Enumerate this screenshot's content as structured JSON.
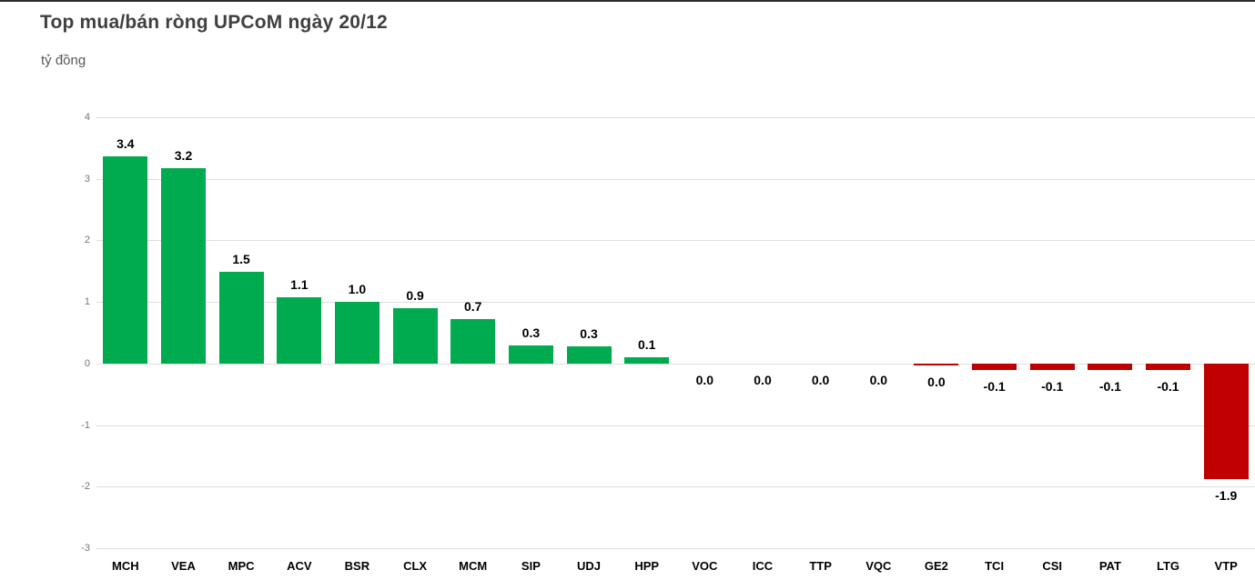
{
  "header": {
    "title": "Top mua/bán ròng UPCoM ngày 20/12",
    "subtitle": "tỷ đồng"
  },
  "chart_data": {
    "type": "bar",
    "title": "Top mua/bán ròng UPCoM ngày 20/12",
    "unit_label": "tỷ đồng",
    "categories": [
      "MCH",
      "VEA",
      "MPC",
      "ACV",
      "BSR",
      "CLX",
      "MCM",
      "SIP",
      "UDJ",
      "HPP",
      "VOC",
      "ICC",
      "TTP",
      "VQC",
      "GE2",
      "TCI",
      "CSI",
      "PAT",
      "LTG",
      "VTP"
    ],
    "values": [
      3.4,
      3.2,
      1.5,
      1.1,
      1.0,
      0.9,
      0.7,
      0.3,
      0.3,
      0.1,
      0.0,
      0.0,
      0.0,
      0.0,
      0.0,
      -0.1,
      -0.1,
      -0.1,
      -0.1,
      -1.9
    ],
    "values_precise": [
      3.37,
      3.17,
      1.49,
      1.08,
      1.01,
      0.9,
      0.72,
      0.29,
      0.28,
      0.1,
      0,
      0,
      0,
      0,
      -0.03,
      -0.1,
      -0.1,
      -0.1,
      -0.1,
      -1.88
    ],
    "value_labels": [
      "3.4",
      "3.2",
      "1.5",
      "1.1",
      "1.0",
      "0.9",
      "0.7",
      "0.3",
      "0.3",
      "0.1",
      "0.0",
      "0.0",
      "0.0",
      "0.0",
      "0.0",
      "-0.1",
      "-0.1",
      "-0.1",
      "-0.1",
      "-1.9"
    ],
    "xlabel": "",
    "ylabel": "tỷ đồng",
    "ylim": [
      -3,
      4
    ],
    "yticks": [
      4,
      3,
      2,
      1,
      0,
      -1,
      -2,
      -3
    ],
    "grid": true,
    "legend": false,
    "colors": {
      "positive": "#00ab50",
      "negative": "#c00000",
      "gridline": "#dedede",
      "tick_label": "#757575",
      "value_label": "#000000",
      "category_label": "#000000",
      "title": "#404040",
      "subtitle": "#595959"
    }
  }
}
